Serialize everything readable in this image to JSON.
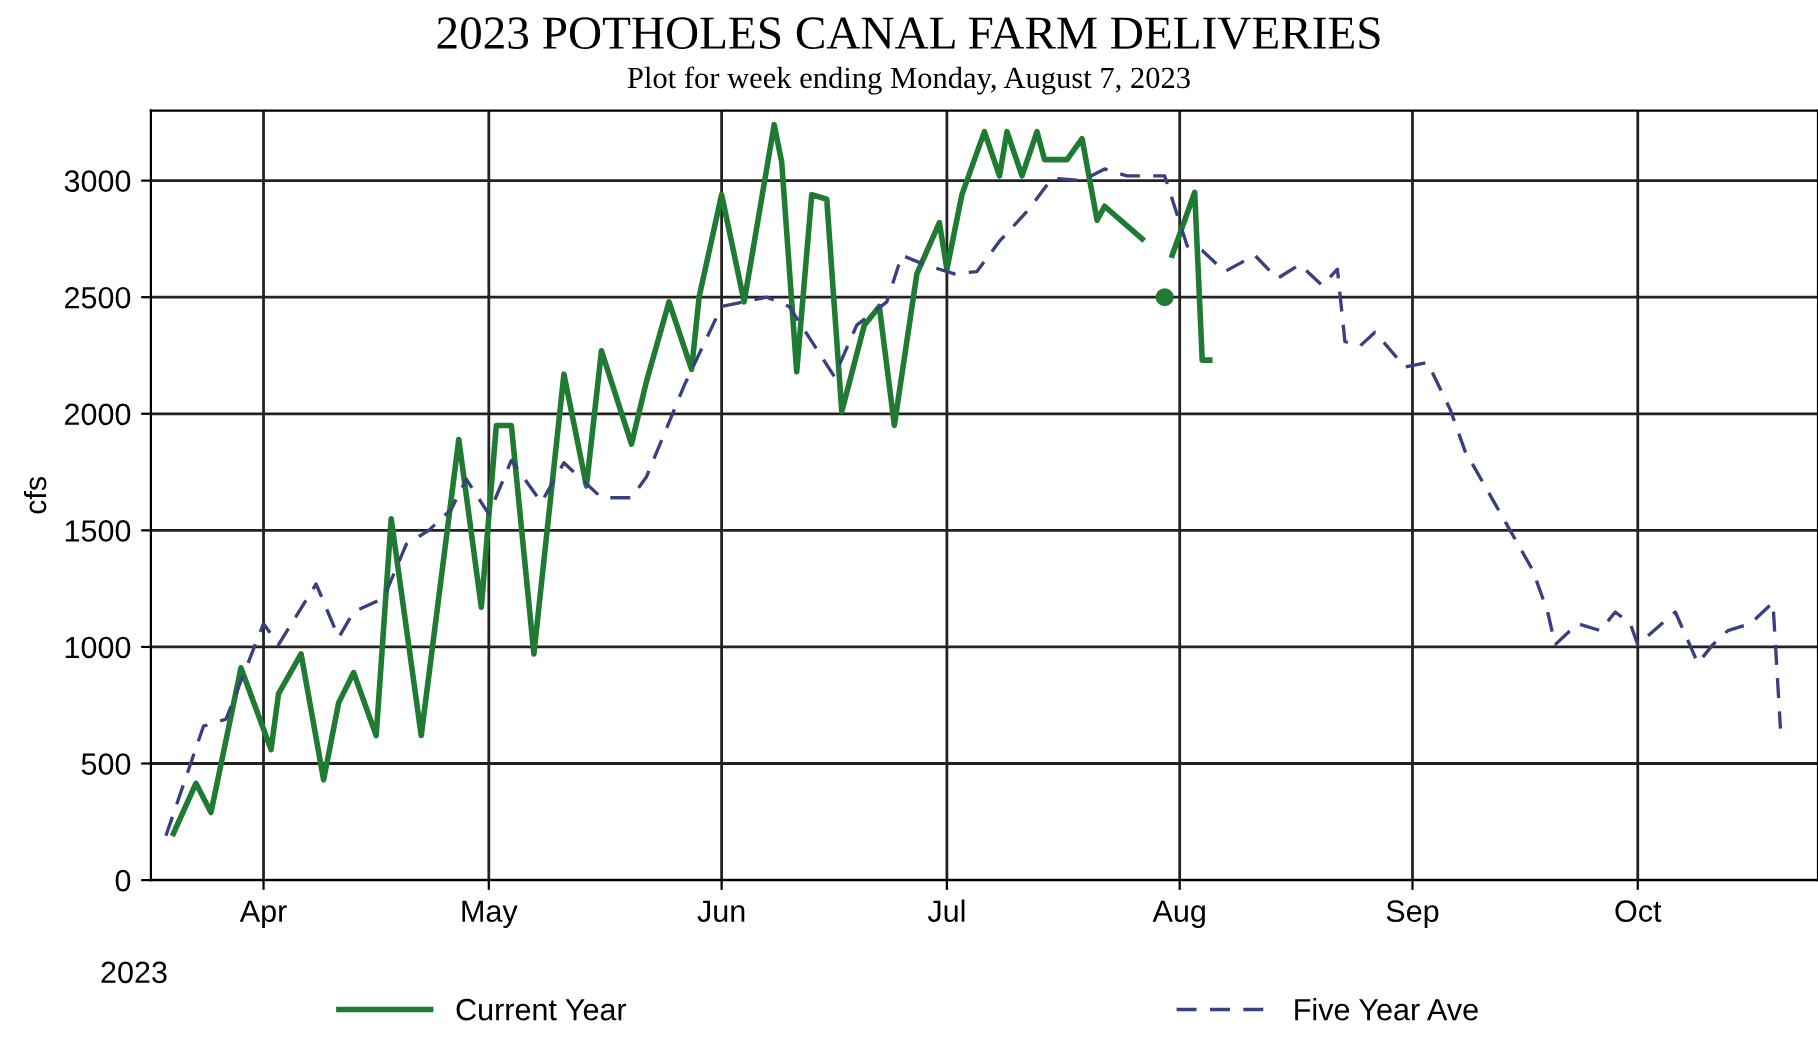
{
  "chart_data": {
    "type": "line",
    "title": "2023 POTHOLES CANAL FARM DELIVERIES",
    "subtitle": "Plot for week ending Monday, August 7, 2023",
    "ylabel": "cfs",
    "annotations": [
      "2023"
    ],
    "xlim": [
      "2023-03-17",
      "2023-10-25"
    ],
    "xticks": [
      {
        "value": "2023-04-01",
        "label": "Apr"
      },
      {
        "value": "2023-05-01",
        "label": "May"
      },
      {
        "value": "2023-06-01",
        "label": "Jun"
      },
      {
        "value": "2023-07-01",
        "label": "Jul"
      },
      {
        "value": "2023-08-01",
        "label": "Aug"
      },
      {
        "value": "2023-09-01",
        "label": "Sep"
      },
      {
        "value": "2023-10-01",
        "label": "Oct"
      }
    ],
    "ylim": [
      0,
      3300
    ],
    "yticks": [
      0,
      500,
      1000,
      1500,
      2000,
      2500,
      3000
    ],
    "grid": true,
    "legend": "bottom",
    "series": [
      {
        "name": "Current Year",
        "color": "#1f7a32",
        "line_style": "solid",
        "marker": "none",
        "x": [
          "2023-03-20",
          "2023-03-23",
          "2023-03-25",
          "2023-03-29",
          "2023-04-02",
          "2023-04-03",
          "2023-04-06",
          "2023-04-09",
          "2023-04-11",
          "2023-04-13",
          "2023-04-16",
          "2023-04-18",
          "2023-04-22",
          "2023-04-27",
          "2023-04-30",
          "2023-05-02",
          "2023-05-04",
          "2023-05-07",
          "2023-05-11",
          "2023-05-14",
          "2023-05-16",
          "2023-05-20",
          "2023-05-22",
          "2023-05-25",
          "2023-05-28",
          "2023-05-29",
          "2023-06-01",
          "2023-06-04",
          "2023-06-08",
          "2023-06-09",
          "2023-06-11",
          "2023-06-13",
          "2023-06-15",
          "2023-06-17",
          "2023-06-20",
          "2023-06-22",
          "2023-06-24",
          "2023-06-27",
          "2023-06-30",
          "2023-07-01",
          "2023-07-03",
          "2023-07-06",
          "2023-07-08",
          "2023-07-09",
          "2023-07-11",
          "2023-07-13",
          "2023-07-14",
          "2023-07-17",
          "2023-07-19",
          "2023-07-21",
          "2023-07-22",
          "2023-07-27",
          "2023-07-29",
          "2023-07-31",
          "2023-08-03",
          "2023-08-04",
          "2023-08-05"
        ],
        "values": [
          200,
          415,
          290,
          910,
          560,
          800,
          970,
          430,
          760,
          890,
          620,
          1550,
          620,
          1890,
          1170,
          1950,
          1950,
          970,
          2170,
          1690,
          2270,
          1870,
          2140,
          2480,
          2190,
          2500,
          2940,
          2480,
          3240,
          3080,
          2180,
          2940,
          2920,
          2010,
          2380,
          2460,
          1950,
          2600,
          2820,
          2620,
          2940,
          3210,
          3020,
          3210,
          3020,
          3210,
          3090,
          3090,
          3180,
          2830,
          2890,
          2750,
          null,
          2680,
          2950,
          2230,
          2230
        ]
      },
      {
        "type": "scatter",
        "color": "#1f7a32",
        "marker": "circle",
        "x": [
          "2023-07-30"
        ],
        "values": [
          2500
        ]
      },
      {
        "name": "Five Year Ave",
        "color": "#3a3f7e",
        "line_style": "dashed",
        "marker": "none",
        "x": [
          "2023-03-19",
          "2023-03-24",
          "2023-03-27",
          "2023-04-01",
          "2023-04-03",
          "2023-04-08",
          "2023-04-11",
          "2023-04-13",
          "2023-04-17",
          "2023-04-20",
          "2023-04-23",
          "2023-04-26",
          "2023-04-28",
          "2023-05-01",
          "2023-05-04",
          "2023-05-08",
          "2023-05-11",
          "2023-05-16",
          "2023-05-20",
          "2023-05-22",
          "2023-05-27",
          "2023-06-01",
          "2023-06-04",
          "2023-06-07",
          "2023-06-10",
          "2023-06-16",
          "2023-06-19",
          "2023-06-23",
          "2023-06-25",
          "2023-06-28",
          "2023-07-02",
          "2023-07-05",
          "2023-07-08",
          "2023-07-12",
          "2023-07-15",
          "2023-07-19",
          "2023-07-22",
          "2023-07-25",
          "2023-07-30",
          "2023-08-02",
          "2023-08-04",
          "2023-08-07",
          "2023-08-11",
          "2023-08-14",
          "2023-08-17",
          "2023-08-20",
          "2023-08-22",
          "2023-08-23",
          "2023-08-25",
          "2023-08-27",
          "2023-08-31",
          "2023-09-03",
          "2023-09-06",
          "2023-09-08",
          "2023-09-11",
          "2023-09-14",
          "2023-09-17",
          "2023-09-19",
          "2023-09-20",
          "2023-09-23",
          "2023-09-26",
          "2023-09-28",
          "2023-09-30",
          "2023-10-01",
          "2023-10-06",
          "2023-10-09",
          "2023-10-11",
          "2023-10-13",
          "2023-10-16",
          "2023-10-19",
          "2023-10-20"
        ],
        "values": [
          190,
          660,
          690,
          1100,
          1010,
          1270,
          1040,
          1150,
          1210,
          1440,
          1500,
          1590,
          1720,
          1570,
          1800,
          1620,
          1790,
          1640,
          1640,
          1730,
          2120,
          2460,
          2480,
          2500,
          2460,
          2160,
          2380,
          2480,
          2680,
          2640,
          2600,
          2610,
          2740,
          2880,
          3010,
          3000,
          3050,
          3020,
          3020,
          2720,
          2700,
          2610,
          2680,
          2580,
          2640,
          2550,
          2620,
          2310,
          2290,
          2350,
          2200,
          2220,
          2020,
          1840,
          1670,
          1500,
          1330,
          1150,
          1010,
          1100,
          1070,
          1150,
          1100,
          1010,
          1150,
          930,
          1010,
          1070,
          1100,
          1190,
          650
        ]
      }
    ]
  }
}
